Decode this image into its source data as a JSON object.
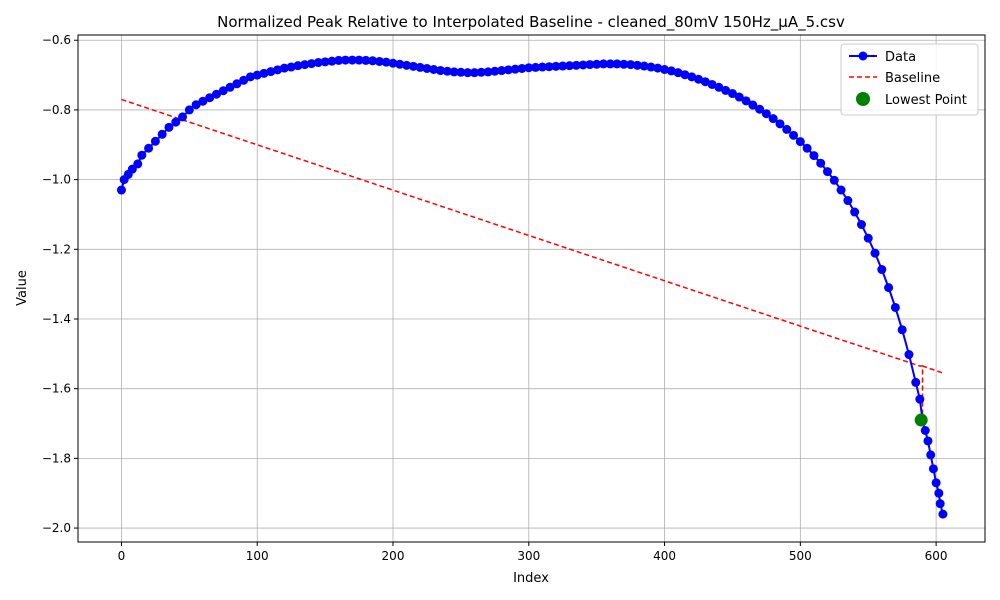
{
  "chart_data": {
    "type": "line",
    "title": "Normalized Peak Relative to Interpolated Baseline - cleaned_80mV 150Hz_µA_5.csv",
    "xlabel": "Index",
    "ylabel": "Value",
    "xlim": [
      -32,
      636
    ],
    "ylim": [
      -2.04,
      -0.585
    ],
    "x_ticks": [
      0,
      100,
      200,
      300,
      400,
      500,
      600
    ],
    "x_tick_labels": [
      "0",
      "100",
      "200",
      "300",
      "400",
      "500",
      "600"
    ],
    "y_ticks": [
      -2.0,
      -1.8,
      -1.6,
      -1.4,
      -1.2,
      -1.0,
      -0.8,
      -0.6
    ],
    "y_tick_labels": [
      "−2.0",
      "−1.8",
      "−1.6",
      "−1.4",
      "−1.2",
      "−1.0",
      "−0.8",
      "−0.6"
    ],
    "grid": true,
    "legend_position": "top-right",
    "colors": {
      "data": "#0000ff",
      "baseline": "#ff0000",
      "lowest": "#008000",
      "grid": "#b0b0b0"
    },
    "series": [
      {
        "name": "Data",
        "style": "line-with-markers",
        "points": [
          [
            0,
            -1.03
          ],
          [
            2,
            -1.0
          ],
          [
            5,
            -0.985
          ],
          [
            8,
            -0.97
          ],
          [
            12,
            -0.955
          ],
          [
            15,
            -0.93
          ],
          [
            20,
            -0.91
          ],
          [
            25,
            -0.89
          ],
          [
            30,
            -0.87
          ],
          [
            35,
            -0.85
          ],
          [
            40,
            -0.835
          ],
          [
            45,
            -0.82
          ],
          [
            50,
            -0.8
          ],
          [
            55,
            -0.785
          ],
          [
            60,
            -0.775
          ],
          [
            65,
            -0.765
          ],
          [
            70,
            -0.755
          ],
          [
            75,
            -0.745
          ],
          [
            80,
            -0.735
          ],
          [
            85,
            -0.725
          ],
          [
            90,
            -0.715
          ],
          [
            95,
            -0.705
          ],
          [
            100,
            -0.7
          ],
          [
            105,
            -0.695
          ],
          [
            110,
            -0.69
          ],
          [
            115,
            -0.685
          ],
          [
            120,
            -0.68
          ],
          [
            125,
            -0.677
          ],
          [
            130,
            -0.673
          ],
          [
            135,
            -0.67
          ],
          [
            140,
            -0.667
          ],
          [
            145,
            -0.664
          ],
          [
            150,
            -0.662
          ],
          [
            155,
            -0.66
          ],
          [
            160,
            -0.658
          ],
          [
            165,
            -0.657
          ],
          [
            170,
            -0.657
          ],
          [
            175,
            -0.657
          ],
          [
            180,
            -0.658
          ],
          [
            185,
            -0.659
          ],
          [
            190,
            -0.661
          ],
          [
            195,
            -0.663
          ],
          [
            200,
            -0.666
          ],
          [
            205,
            -0.669
          ],
          [
            210,
            -0.672
          ],
          [
            215,
            -0.675
          ],
          [
            220,
            -0.678
          ],
          [
            225,
            -0.681
          ],
          [
            230,
            -0.684
          ],
          [
            235,
            -0.687
          ],
          [
            240,
            -0.689
          ],
          [
            245,
            -0.691
          ],
          [
            250,
            -0.692
          ],
          [
            255,
            -0.693
          ],
          [
            260,
            -0.693
          ],
          [
            265,
            -0.692
          ],
          [
            270,
            -0.691
          ],
          [
            275,
            -0.689
          ],
          [
            280,
            -0.687
          ],
          [
            285,
            -0.685
          ],
          [
            290,
            -0.683
          ],
          [
            295,
            -0.681
          ],
          [
            300,
            -0.679
          ],
          [
            305,
            -0.678
          ],
          [
            310,
            -0.677
          ],
          [
            315,
            -0.676
          ],
          [
            320,
            -0.675
          ],
          [
            325,
            -0.674
          ],
          [
            330,
            -0.673
          ],
          [
            335,
            -0.672
          ],
          [
            340,
            -0.671
          ],
          [
            345,
            -0.67
          ],
          [
            350,
            -0.669
          ],
          [
            355,
            -0.668
          ],
          [
            360,
            -0.668
          ],
          [
            365,
            -0.668
          ],
          [
            370,
            -0.669
          ],
          [
            375,
            -0.67
          ],
          [
            380,
            -0.672
          ],
          [
            385,
            -0.674
          ],
          [
            390,
            -0.677
          ],
          [
            395,
            -0.68
          ],
          [
            400,
            -0.684
          ],
          [
            405,
            -0.688
          ],
          [
            410,
            -0.693
          ],
          [
            415,
            -0.699
          ],
          [
            420,
            -0.705
          ],
          [
            425,
            -0.712
          ],
          [
            430,
            -0.719
          ],
          [
            435,
            -0.727
          ],
          [
            440,
            -0.735
          ],
          [
            445,
            -0.744
          ],
          [
            450,
            -0.753
          ],
          [
            455,
            -0.763
          ],
          [
            460,
            -0.774
          ],
          [
            465,
            -0.786
          ],
          [
            470,
            -0.798
          ],
          [
            475,
            -0.811
          ],
          [
            480,
            -0.825
          ],
          [
            485,
            -0.84
          ],
          [
            490,
            -0.856
          ],
          [
            495,
            -0.873
          ],
          [
            500,
            -0.891
          ],
          [
            505,
            -0.91
          ],
          [
            510,
            -0.931
          ],
          [
            515,
            -0.953
          ],
          [
            520,
            -0.977
          ],
          [
            525,
            -1.002
          ],
          [
            530,
            -1.03
          ],
          [
            535,
            -1.06
          ],
          [
            540,
            -1.093
          ],
          [
            545,
            -1.129
          ],
          [
            550,
            -1.168
          ],
          [
            555,
            -1.211
          ],
          [
            560,
            -1.258
          ],
          [
            565,
            -1.31
          ],
          [
            570,
            -1.367
          ],
          [
            575,
            -1.431
          ],
          [
            580,
            -1.502
          ],
          [
            585,
            -1.582
          ],
          [
            588,
            -1.63
          ],
          [
            590,
            -1.69
          ],
          [
            592,
            -1.72
          ],
          [
            594,
            -1.75
          ],
          [
            596,
            -1.79
          ],
          [
            598,
            -1.83
          ],
          [
            600,
            -1.87
          ],
          [
            602,
            -1.9
          ],
          [
            603,
            -1.93
          ],
          [
            605,
            -1.96
          ]
        ]
      },
      {
        "name": "Baseline",
        "style": "dashed-line",
        "points": [
          [
            0,
            -0.77
          ],
          [
            588,
            -1.535
          ],
          [
            590,
            -1.535
          ],
          [
            590,
            -1.69
          ],
          [
            590,
            -1.535
          ],
          [
            605,
            -1.555
          ]
        ]
      },
      {
        "name": "Lowest Point",
        "style": "marker",
        "points": [
          [
            589,
            -1.69
          ]
        ]
      }
    ]
  }
}
